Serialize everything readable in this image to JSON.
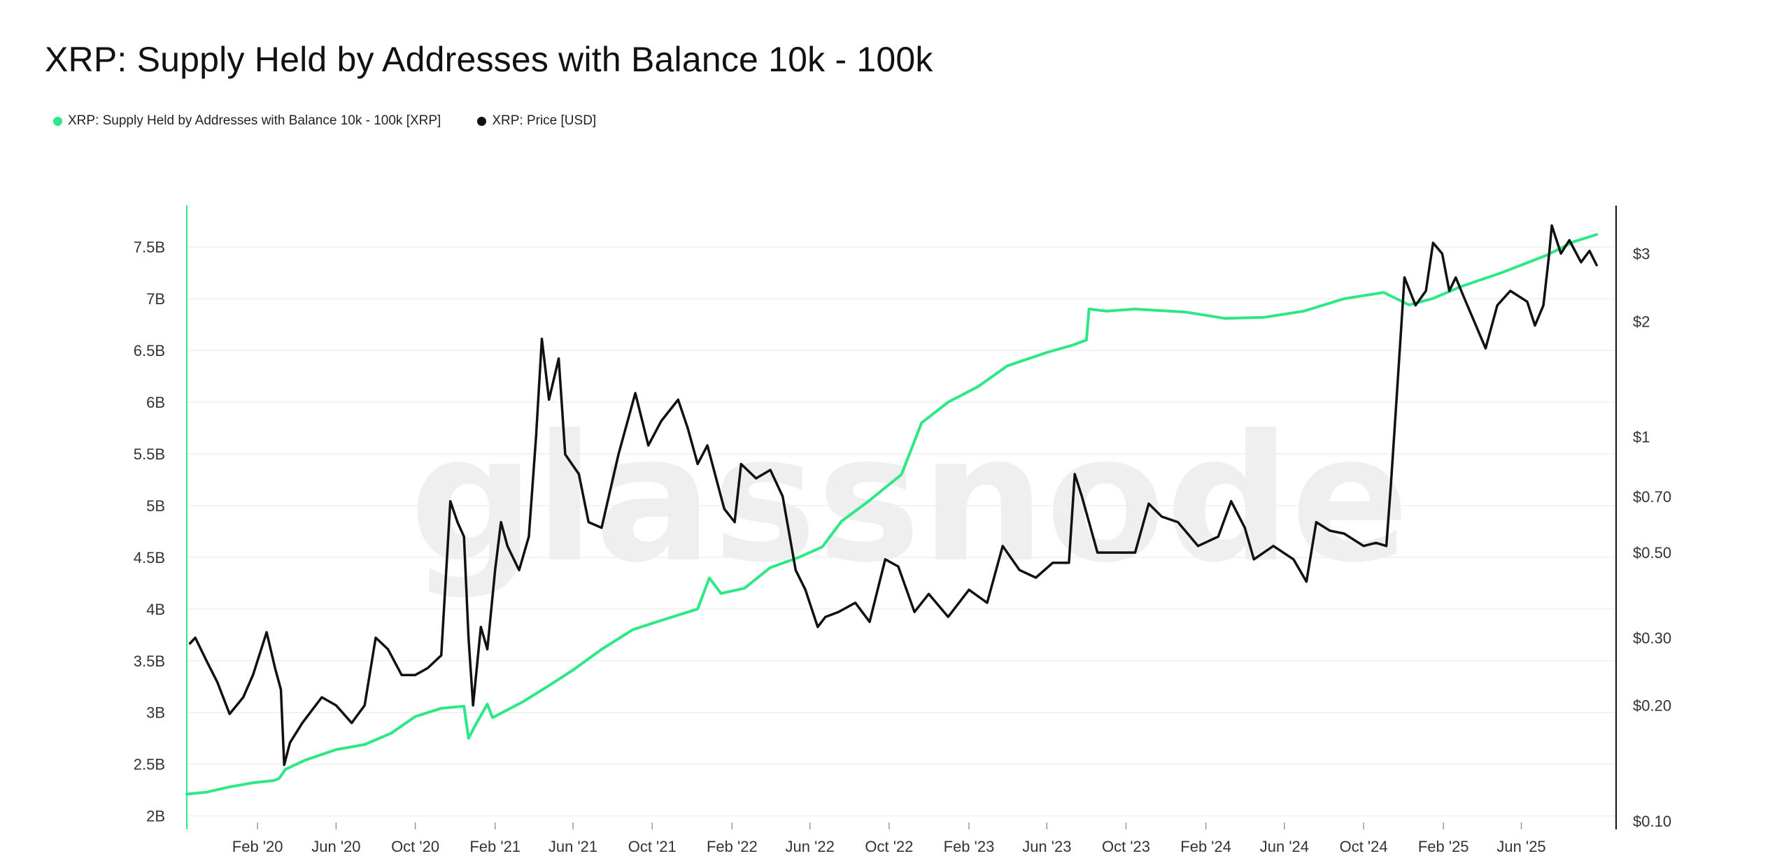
{
  "title": "XRP: Supply Held by Addresses with Balance 10k - 100k",
  "watermark": "glassnode",
  "legend": [
    {
      "label": "XRP: Supply Held by Addresses with Balance 10k - 100k [XRP]",
      "color": "#2ee888"
    },
    {
      "label": "XRP: Price [USD]",
      "color": "#111111"
    }
  ],
  "chart_data": {
    "type": "line",
    "title": "XRP: Supply Held by Addresses with Balance 10k - 100k",
    "grid": true,
    "legend_position": "top-left",
    "x_axis": {
      "type": "date",
      "range": [
        "2019-10-15",
        "2025-10-25"
      ],
      "ticks": [
        {
          "date": "2020-02-01",
          "label": "Feb '20"
        },
        {
          "date": "2020-06-01",
          "label": "Jun '20"
        },
        {
          "date": "2020-10-01",
          "label": "Oct '20"
        },
        {
          "date": "2021-02-01",
          "label": "Feb '21"
        },
        {
          "date": "2021-06-01",
          "label": "Jun '21"
        },
        {
          "date": "2021-10-01",
          "label": "Oct '21"
        },
        {
          "date": "2022-02-01",
          "label": "Feb '22"
        },
        {
          "date": "2022-06-01",
          "label": "Jun '22"
        },
        {
          "date": "2022-10-01",
          "label": "Oct '22"
        },
        {
          "date": "2023-02-01",
          "label": "Feb '23"
        },
        {
          "date": "2023-06-01",
          "label": "Jun '23"
        },
        {
          "date": "2023-10-01",
          "label": "Oct '23"
        },
        {
          "date": "2024-02-01",
          "label": "Feb '24"
        },
        {
          "date": "2024-06-01",
          "label": "Jun '24"
        },
        {
          "date": "2024-10-01",
          "label": "Oct '24"
        },
        {
          "date": "2025-02-01",
          "label": "Feb '25"
        },
        {
          "date": "2025-06-01",
          "label": "Jun '25"
        }
      ]
    },
    "y_left": {
      "label": "",
      "scale": "linear",
      "range": [
        1950000000,
        7900000000
      ],
      "ticks": [
        {
          "value": 2000000000,
          "label": "2B"
        },
        {
          "value": 2500000000,
          "label": "2.5B"
        },
        {
          "value": 3000000000,
          "label": "3B"
        },
        {
          "value": 3500000000,
          "label": "3.5B"
        },
        {
          "value": 4000000000,
          "label": "4B"
        },
        {
          "value": 4500000000,
          "label": "4.5B"
        },
        {
          "value": 5000000000,
          "label": "5B"
        },
        {
          "value": 5500000000,
          "label": "5.5B"
        },
        {
          "value": 6000000000,
          "label": "6B"
        },
        {
          "value": 6500000000,
          "label": "6.5B"
        },
        {
          "value": 7000000000,
          "label": "7B"
        },
        {
          "value": 7500000000,
          "label": "7.5B"
        }
      ]
    },
    "y_right": {
      "label": "",
      "scale": "log",
      "range": [
        0.1,
        4.0
      ],
      "ticks": [
        {
          "value": 0.1,
          "label": "$0.10"
        },
        {
          "value": 0.2,
          "label": "$0.20"
        },
        {
          "value": 0.3,
          "label": "$0.30"
        },
        {
          "value": 0.5,
          "label": "$0.50"
        },
        {
          "value": 0.7,
          "label": "$0.70"
        },
        {
          "value": 1,
          "label": "$1"
        },
        {
          "value": 2,
          "label": "$2"
        },
        {
          "value": 3,
          "label": "$3"
        }
      ]
    },
    "series": [
      {
        "name": "XRP: Supply Held by Addresses with Balance 10k - 100k [XRP]",
        "axis": "left",
        "color": "#2ee888",
        "points": [
          [
            "2019-10-15",
            2210000000
          ],
          [
            "2019-11-15",
            2230000000
          ],
          [
            "2019-12-20",
            2280000000
          ],
          [
            "2020-01-25",
            2320000000
          ],
          [
            "2020-02-25",
            2340000000
          ],
          [
            "2020-03-05",
            2360000000
          ],
          [
            "2020-03-15",
            2450000000
          ],
          [
            "2020-04-15",
            2540000000
          ],
          [
            "2020-06-01",
            2640000000
          ],
          [
            "2020-07-15",
            2690000000
          ],
          [
            "2020-08-25",
            2800000000
          ],
          [
            "2020-10-01",
            2960000000
          ],
          [
            "2020-11-10",
            3040000000
          ],
          [
            "2020-12-15",
            3060000000
          ],
          [
            "2020-12-22",
            2750000000
          ],
          [
            "2021-01-01",
            2870000000
          ],
          [
            "2021-01-20",
            3080000000
          ],
          [
            "2021-01-28",
            2950000000
          ],
          [
            "2021-03-15",
            3100000000
          ],
          [
            "2021-04-25",
            3260000000
          ],
          [
            "2021-06-01",
            3410000000
          ],
          [
            "2021-07-15",
            3610000000
          ],
          [
            "2021-09-01",
            3800000000
          ],
          [
            "2021-10-20",
            3900000000
          ],
          [
            "2021-12-10",
            4000000000
          ],
          [
            "2021-12-28",
            4300000000
          ],
          [
            "2022-01-15",
            4150000000
          ],
          [
            "2022-02-20",
            4200000000
          ],
          [
            "2022-04-01",
            4400000000
          ],
          [
            "2022-05-15",
            4500000000
          ],
          [
            "2022-06-20",
            4600000000
          ],
          [
            "2022-07-20",
            4850000000
          ],
          [
            "2022-09-01",
            5050000000
          ],
          [
            "2022-10-20",
            5300000000
          ],
          [
            "2022-11-20",
            5800000000
          ],
          [
            "2022-12-31",
            6000000000
          ],
          [
            "2023-02-15",
            6150000000
          ],
          [
            "2023-04-01",
            6350000000
          ],
          [
            "2023-06-01",
            6480000000
          ],
          [
            "2023-07-10",
            6550000000
          ],
          [
            "2023-08-01",
            6600000000
          ],
          [
            "2023-08-05",
            6900000000
          ],
          [
            "2023-09-01",
            6880000000
          ],
          [
            "2023-10-15",
            6900000000
          ],
          [
            "2024-01-01",
            6870000000
          ],
          [
            "2024-03-01",
            6810000000
          ],
          [
            "2024-05-01",
            6820000000
          ],
          [
            "2024-07-01",
            6880000000
          ],
          [
            "2024-09-01",
            7000000000
          ],
          [
            "2024-11-01",
            7060000000
          ],
          [
            "2024-12-10",
            6940000000
          ],
          [
            "2025-01-15",
            7000000000
          ],
          [
            "2025-03-01",
            7120000000
          ],
          [
            "2025-05-01",
            7250000000
          ],
          [
            "2025-07-10",
            7420000000
          ],
          [
            "2025-08-20",
            7550000000
          ],
          [
            "2025-09-25",
            7620000000
          ]
        ]
      },
      {
        "name": "XRP: Price [USD]",
        "axis": "right",
        "color": "#111111",
        "points": [
          [
            "2019-10-20",
            0.29
          ],
          [
            "2019-10-28",
            0.3
          ],
          [
            "2019-11-15",
            0.26
          ],
          [
            "2019-12-01",
            0.23
          ],
          [
            "2019-12-20",
            0.19
          ],
          [
            "2020-01-10",
            0.21
          ],
          [
            "2020-01-25",
            0.24
          ],
          [
            "2020-02-15",
            0.31
          ],
          [
            "2020-02-28",
            0.25
          ],
          [
            "2020-03-08",
            0.22
          ],
          [
            "2020-03-13",
            0.14
          ],
          [
            "2020-03-22",
            0.16
          ],
          [
            "2020-04-10",
            0.18
          ],
          [
            "2020-05-10",
            0.21
          ],
          [
            "2020-06-01",
            0.2
          ],
          [
            "2020-06-25",
            0.18
          ],
          [
            "2020-07-15",
            0.2
          ],
          [
            "2020-08-01",
            0.3
          ],
          [
            "2020-08-20",
            0.28
          ],
          [
            "2020-09-10",
            0.24
          ],
          [
            "2020-10-01",
            0.24
          ],
          [
            "2020-10-20",
            0.25
          ],
          [
            "2020-11-10",
            0.27
          ],
          [
            "2020-11-24",
            0.68
          ],
          [
            "2020-12-05",
            0.6
          ],
          [
            "2020-12-15",
            0.55
          ],
          [
            "2020-12-22",
            0.3
          ],
          [
            "2020-12-29",
            0.2
          ],
          [
            "2021-01-10",
            0.32
          ],
          [
            "2021-01-20",
            0.28
          ],
          [
            "2021-02-01",
            0.45
          ],
          [
            "2021-02-10",
            0.6
          ],
          [
            "2021-02-20",
            0.52
          ],
          [
            "2021-03-10",
            0.45
          ],
          [
            "2021-03-25",
            0.55
          ],
          [
            "2021-04-05",
            1.0
          ],
          [
            "2021-04-14",
            1.8
          ],
          [
            "2021-04-25",
            1.25
          ],
          [
            "2021-05-10",
            1.6
          ],
          [
            "2021-05-20",
            0.9
          ],
          [
            "2021-06-10",
            0.8
          ],
          [
            "2021-06-25",
            0.6
          ],
          [
            "2021-07-15",
            0.58
          ],
          [
            "2021-08-10",
            0.9
          ],
          [
            "2021-09-05",
            1.3
          ],
          [
            "2021-09-25",
            0.95
          ],
          [
            "2021-10-15",
            1.1
          ],
          [
            "2021-11-10",
            1.25
          ],
          [
            "2021-11-25",
            1.05
          ],
          [
            "2021-12-10",
            0.85
          ],
          [
            "2021-12-25",
            0.95
          ],
          [
            "2022-01-20",
            0.65
          ],
          [
            "2022-02-05",
            0.6
          ],
          [
            "2022-02-15",
            0.85
          ],
          [
            "2022-03-10",
            0.78
          ],
          [
            "2022-04-01",
            0.82
          ],
          [
            "2022-04-20",
            0.7
          ],
          [
            "2022-05-10",
            0.45
          ],
          [
            "2022-05-25",
            0.4
          ],
          [
            "2022-06-13",
            0.32
          ],
          [
            "2022-06-25",
            0.34
          ],
          [
            "2022-07-15",
            0.35
          ],
          [
            "2022-08-10",
            0.37
          ],
          [
            "2022-09-01",
            0.33
          ],
          [
            "2022-09-25",
            0.48
          ],
          [
            "2022-10-15",
            0.46
          ],
          [
            "2022-11-09",
            0.35
          ],
          [
            "2022-12-01",
            0.39
          ],
          [
            "2022-12-31",
            0.34
          ],
          [
            "2023-02-01",
            0.4
          ],
          [
            "2023-03-01",
            0.37
          ],
          [
            "2023-03-25",
            0.52
          ],
          [
            "2023-04-20",
            0.45
          ],
          [
            "2023-05-15",
            0.43
          ],
          [
            "2023-06-10",
            0.47
          ],
          [
            "2023-07-05",
            0.47
          ],
          [
            "2023-07-14",
            0.8
          ],
          [
            "2023-07-25",
            0.7
          ],
          [
            "2023-08-18",
            0.5
          ],
          [
            "2023-09-15",
            0.5
          ],
          [
            "2023-10-15",
            0.5
          ],
          [
            "2023-11-05",
            0.67
          ],
          [
            "2023-11-25",
            0.62
          ],
          [
            "2023-12-20",
            0.6
          ],
          [
            "2024-01-20",
            0.52
          ],
          [
            "2024-02-20",
            0.55
          ],
          [
            "2024-03-11",
            0.68
          ],
          [
            "2024-04-01",
            0.58
          ],
          [
            "2024-04-15",
            0.48
          ],
          [
            "2024-05-15",
            0.52
          ],
          [
            "2024-06-15",
            0.48
          ],
          [
            "2024-07-05",
            0.42
          ],
          [
            "2024-07-20",
            0.6
          ],
          [
            "2024-08-10",
            0.57
          ],
          [
            "2024-09-01",
            0.56
          ],
          [
            "2024-10-01",
            0.52
          ],
          [
            "2024-10-20",
            0.53
          ],
          [
            "2024-11-05",
            0.52
          ],
          [
            "2024-11-12",
            0.75
          ],
          [
            "2024-11-20",
            1.2
          ],
          [
            "2024-12-03",
            2.6
          ],
          [
            "2024-12-20",
            2.2
          ],
          [
            "2025-01-05",
            2.4
          ],
          [
            "2025-01-16",
            3.2
          ],
          [
            "2025-01-30",
            3.0
          ],
          [
            "2025-02-10",
            2.4
          ],
          [
            "2025-02-20",
            2.6
          ],
          [
            "2025-03-05",
            2.3
          ],
          [
            "2025-04-07",
            1.7
          ],
          [
            "2025-04-25",
            2.2
          ],
          [
            "2025-05-15",
            2.4
          ],
          [
            "2025-06-10",
            2.25
          ],
          [
            "2025-06-22",
            1.95
          ],
          [
            "2025-07-05",
            2.2
          ],
          [
            "2025-07-14",
            3.0
          ],
          [
            "2025-07-18",
            3.55
          ],
          [
            "2025-08-01",
            3.0
          ],
          [
            "2025-08-14",
            3.25
          ],
          [
            "2025-09-01",
            2.85
          ],
          [
            "2025-09-14",
            3.05
          ],
          [
            "2025-09-25",
            2.8
          ]
        ]
      }
    ]
  }
}
